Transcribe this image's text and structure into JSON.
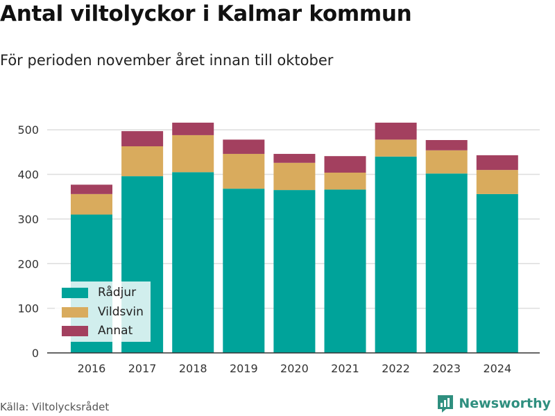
{
  "title": "Antal viltolyckor i Kalmar kommun",
  "subtitle": "För perioden november året innan till oktober",
  "source": "Källa: Viltolycksrådet",
  "brand": "Newsworthy",
  "colors": {
    "radjur": "#00a39a",
    "vildsvin": "#d9ab5d",
    "annat": "#a3405f",
    "grid": "#dddddd",
    "brand": "#2f8f7f"
  },
  "chart_data": {
    "type": "bar",
    "stacked": true,
    "categories": [
      "2016",
      "2017",
      "2018",
      "2019",
      "2020",
      "2021",
      "2022",
      "2023",
      "2024"
    ],
    "series": [
      {
        "name": "Rådjur",
        "color": "#00a39a",
        "values": [
          310,
          396,
          405,
          368,
          365,
          366,
          440,
          402,
          356
        ]
      },
      {
        "name": "Vildsvin",
        "color": "#d9ab5d",
        "values": [
          46,
          67,
          83,
          78,
          61,
          38,
          38,
          52,
          54
        ]
      },
      {
        "name": "Annat",
        "color": "#a3405f",
        "values": [
          21,
          34,
          28,
          32,
          20,
          37,
          38,
          23,
          33
        ]
      }
    ],
    "yticks": [
      0,
      100,
      200,
      300,
      400,
      500
    ],
    "ylim": [
      0,
      560
    ],
    "grid": true,
    "legend_position": "bottom-left"
  }
}
